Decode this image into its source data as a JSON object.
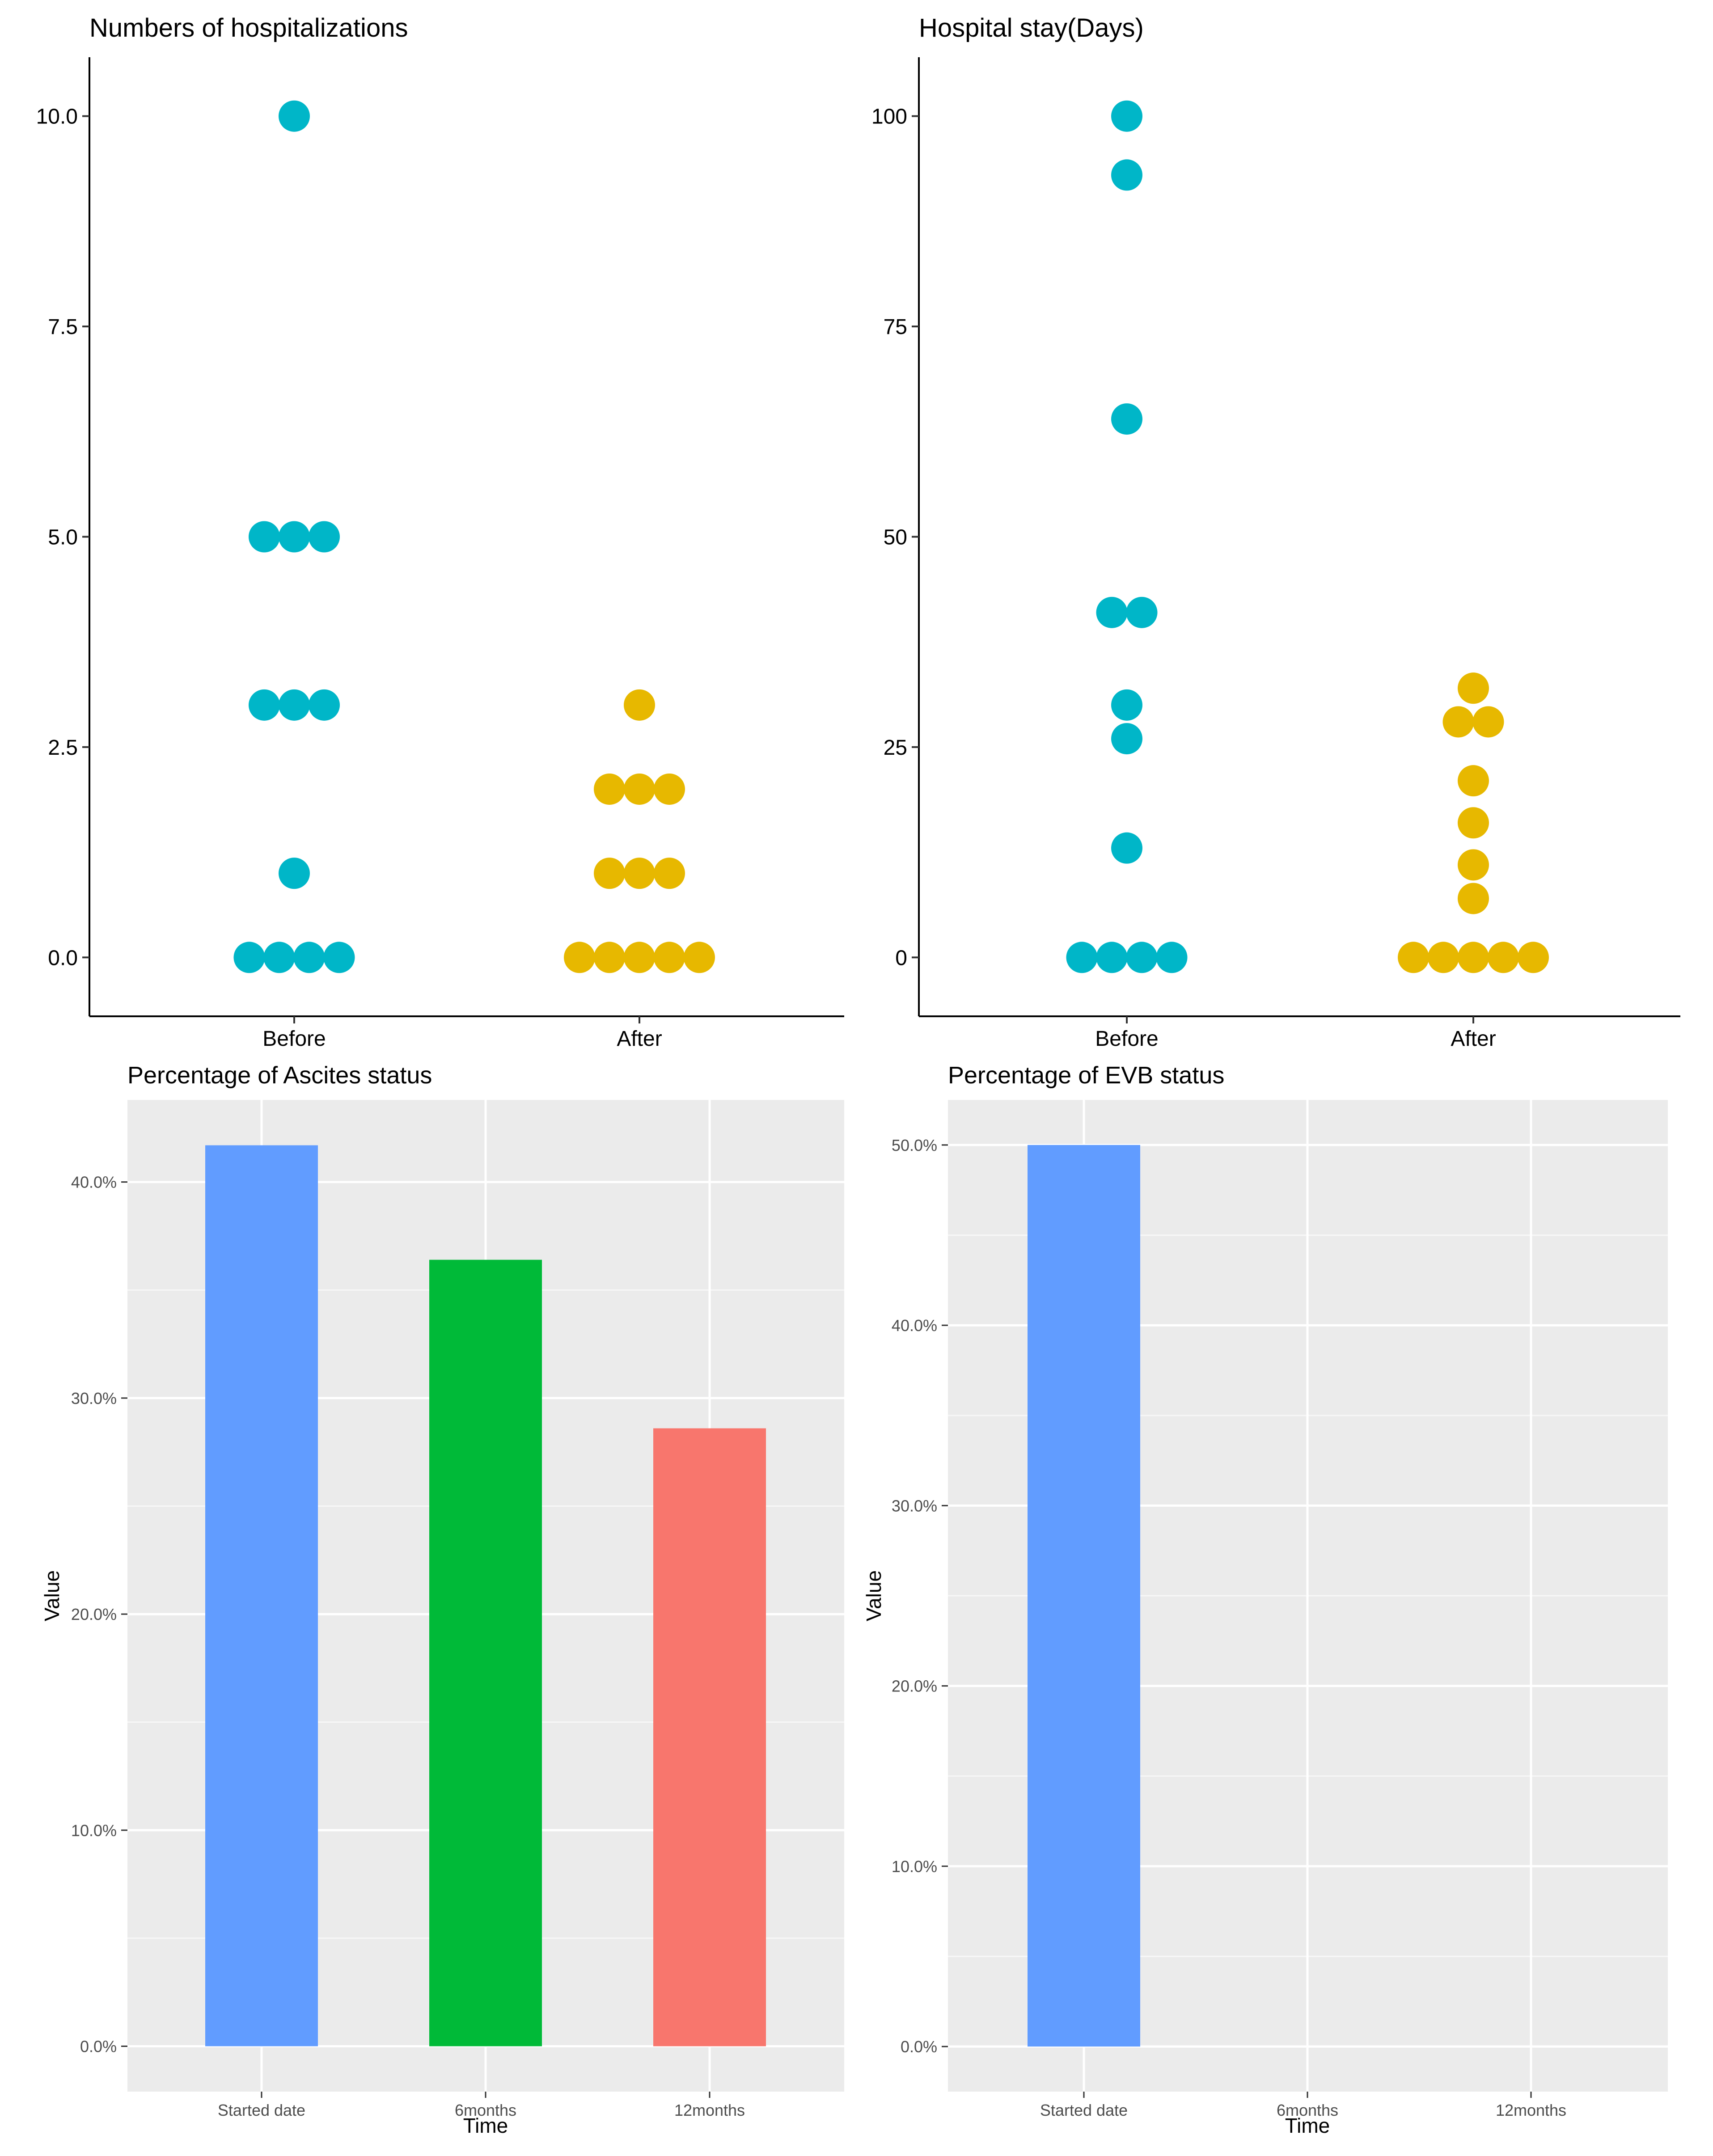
{
  "chart_data": [
    {
      "type": "scatter",
      "subtype": "dotplot",
      "title": "Numbers of hospitalizations",
      "xlabel": "",
      "ylabel": "",
      "categories": [
        "Before",
        "After"
      ],
      "ylim": [
        -0.7,
        10.7
      ],
      "yticks": [
        0.0,
        2.5,
        5.0,
        7.5,
        10.0
      ],
      "ytick_labels": [
        "0.0",
        "2.5",
        "5.0",
        "7.5",
        "10.0"
      ],
      "grid": false,
      "series": [
        {
          "name": "Before",
          "color": "#00B6C8",
          "values": [
            0,
            0,
            0,
            0,
            1,
            3,
            3,
            3,
            5,
            5,
            5,
            10
          ]
        },
        {
          "name": "After",
          "color": "#E7B800",
          "values": [
            0,
            0,
            0,
            0,
            0,
            1,
            1,
            1,
            2,
            2,
            2,
            3
          ]
        }
      ]
    },
    {
      "type": "scatter",
      "subtype": "dotplot",
      "title": "Hospital stay(Days)",
      "xlabel": "",
      "ylabel": "",
      "categories": [
        "Before",
        "After"
      ],
      "ylim": [
        -7,
        107
      ],
      "yticks": [
        0,
        25,
        50,
        75,
        100
      ],
      "ytick_labels": [
        "0",
        "25",
        "50",
        "75",
        "100"
      ],
      "grid": false,
      "series": [
        {
          "name": "Before",
          "color": "#00B6C8",
          "values": [
            0,
            0,
            0,
            0,
            13,
            26,
            30,
            41,
            41,
            64,
            93,
            100
          ]
        },
        {
          "name": "After",
          "color": "#E7B800",
          "values": [
            0,
            0,
            0,
            0,
            0,
            7,
            11,
            16,
            21,
            28,
            28,
            32
          ]
        }
      ]
    },
    {
      "type": "bar",
      "title": "Percentage of Ascites status",
      "xlabel": "Time",
      "ylabel": "Value",
      "categories": [
        "Started date",
        "6months",
        "12months"
      ],
      "values": [
        41.7,
        36.4,
        28.6
      ],
      "colors": [
        "#619CFF",
        "#00BA38",
        "#F8766D"
      ],
      "ylim": [
        -2.1,
        43.8
      ],
      "yticks": [
        0,
        10,
        20,
        30,
        40
      ],
      "ytick_labels": [
        "0.0%",
        "10.0%",
        "20.0%",
        "30.0%",
        "40.0%"
      ],
      "grid": true
    },
    {
      "type": "bar",
      "title": "Percentage of EVB status",
      "xlabel": "Time",
      "ylabel": "Value",
      "categories": [
        "Started date",
        "6months",
        "12months"
      ],
      "values": [
        50.0,
        0.0,
        0.0
      ],
      "colors": [
        "#619CFF",
        "#00BA38",
        "#F8766D"
      ],
      "ylim": [
        -2.5,
        52.5
      ],
      "yticks": [
        0,
        10,
        20,
        30,
        40,
        50
      ],
      "ytick_labels": [
        "0.0%",
        "10.0%",
        "20.0%",
        "30.0%",
        "40.0%",
        "50.0%"
      ],
      "grid": true
    }
  ]
}
